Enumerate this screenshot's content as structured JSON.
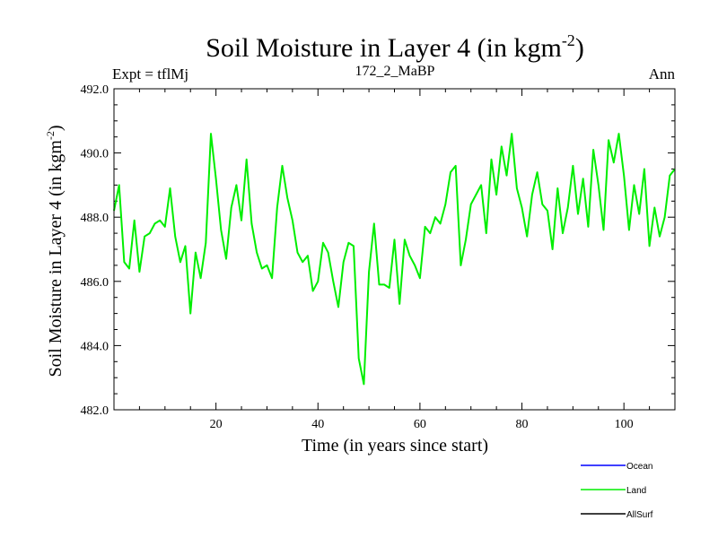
{
  "chart_data": {
    "type": "line",
    "title": "Soil Moisture in Layer 4 (in kgm",
    "title_sup": "-2",
    "title_end": ")",
    "subtitle_left": "Expt = tflMj",
    "subtitle_center": "172_2_MaBP",
    "subtitle_right": "Ann",
    "xlabel": "Time (in years since start)",
    "ylabel": "Soil Moisture in Layer 4 (in kgm",
    "ylabel_sup": "-2",
    "ylabel_end": ")",
    "xlim": [
      0,
      110
    ],
    "ylim": [
      482.0,
      492.0
    ],
    "x_ticks": [
      20,
      40,
      60,
      80,
      100
    ],
    "x_tick_labels": [
      "20",
      "40",
      "60",
      "80",
      "100"
    ],
    "y_ticks": [
      482,
      484,
      486,
      488,
      490,
      492
    ],
    "y_tick_labels": [
      "482.0",
      "484.0",
      "486.0",
      "488.0",
      "490.0",
      "492.0"
    ],
    "legend": [
      {
        "name": "Ocean",
        "color": "#0000ff"
      },
      {
        "name": "Land",
        "color": "#00ee00"
      },
      {
        "name": "AllSurf",
        "color": "#000000"
      }
    ],
    "series": [
      {
        "name": "Land",
        "color": "#00ee00",
        "x": [
          0,
          1,
          2,
          3,
          4,
          5,
          6,
          7,
          8,
          9,
          10,
          11,
          12,
          13,
          14,
          15,
          16,
          17,
          18,
          19,
          20,
          21,
          22,
          23,
          24,
          25,
          26,
          27,
          28,
          29,
          30,
          31,
          32,
          33,
          34,
          35,
          36,
          37,
          38,
          39,
          40,
          41,
          42,
          43,
          44,
          45,
          46,
          47,
          48,
          49,
          50,
          51,
          52,
          53,
          54,
          55,
          56,
          57,
          58,
          59,
          60,
          61,
          62,
          63,
          64,
          65,
          66,
          67,
          68,
          69,
          70,
          71,
          72,
          73,
          74,
          75,
          76,
          77,
          78,
          79,
          80,
          81,
          82,
          83,
          84,
          85,
          86,
          87,
          88,
          89,
          90,
          91,
          92,
          93,
          94,
          95,
          96,
          97,
          98,
          99,
          100,
          101,
          102,
          103,
          104,
          105,
          106,
          107,
          108,
          109,
          110
        ],
        "values": [
          488.2,
          489.0,
          486.6,
          486.4,
          487.9,
          486.3,
          487.4,
          487.5,
          487.8,
          487.9,
          487.7,
          488.9,
          487.4,
          486.6,
          487.1,
          485.0,
          486.9,
          486.1,
          487.2,
          490.6,
          489.2,
          487.6,
          486.7,
          488.3,
          489.0,
          487.9,
          489.8,
          487.8,
          486.9,
          486.4,
          486.5,
          486.1,
          488.3,
          489.6,
          488.6,
          487.9,
          486.9,
          486.6,
          486.8,
          485.7,
          486.0,
          487.2,
          486.9,
          486.0,
          485.2,
          486.6,
          487.2,
          487.1,
          483.6,
          482.8,
          486.3,
          487.8,
          485.9,
          485.9,
          485.8,
          487.3,
          485.3,
          487.3,
          486.8,
          486.5,
          486.1,
          487.7,
          487.5,
          488.0,
          487.8,
          488.4,
          489.4,
          489.6,
          486.5,
          487.3,
          488.4,
          488.7,
          489.0,
          487.5,
          489.8,
          488.7,
          490.2,
          489.3,
          490.6,
          488.9,
          488.3,
          487.4,
          488.7,
          489.4,
          488.4,
          488.2,
          487.0,
          488.9,
          487.5,
          488.3,
          489.6,
          488.1,
          489.2,
          487.7,
          490.1,
          489.0,
          487.6,
          490.4,
          489.7,
          490.6,
          489.3,
          487.6,
          489.0,
          488.1,
          489.5,
          487.1,
          488.3,
          487.4,
          488.0,
          489.3,
          489.5
        ]
      }
    ]
  }
}
